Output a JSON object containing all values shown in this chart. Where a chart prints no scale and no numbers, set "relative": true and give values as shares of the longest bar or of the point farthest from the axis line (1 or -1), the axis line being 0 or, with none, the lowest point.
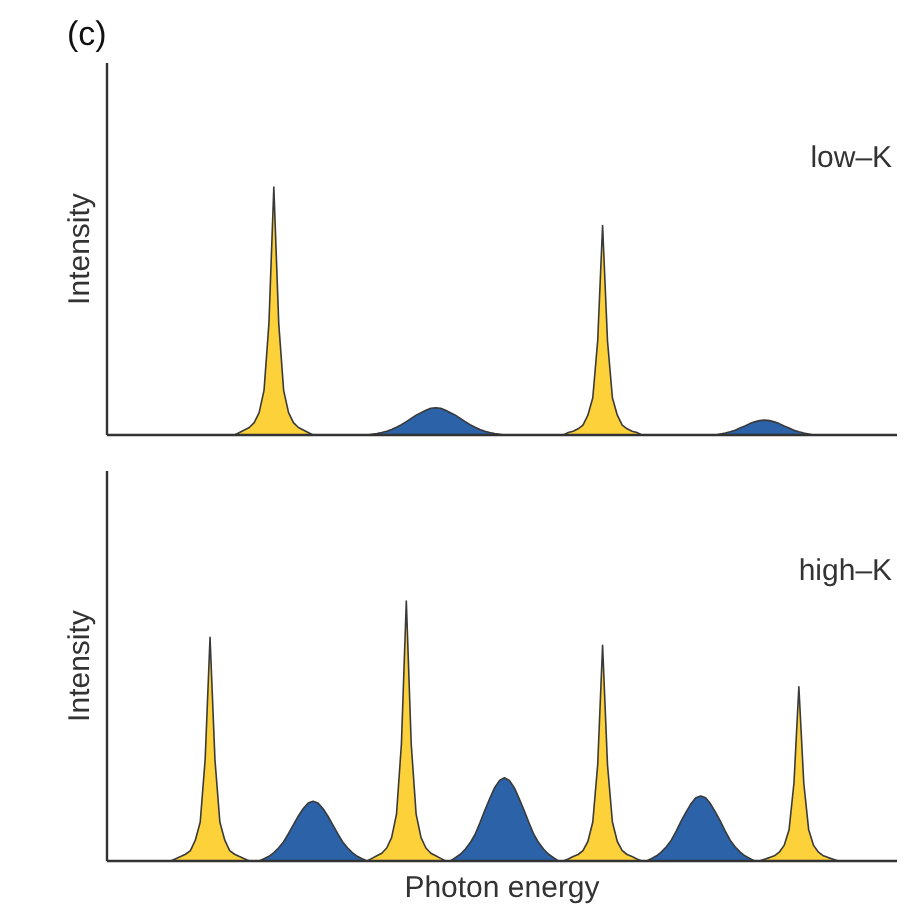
{
  "chart_data": [
    {
      "type": "area",
      "title": "(c)",
      "ylabel": "Intensity",
      "relative": true,
      "annotations": [
        "low–K"
      ],
      "categories": [
        null,
        null,
        null,
        null,
        null,
        null,
        null,
        null,
        null,
        null,
        null,
        null,
        null,
        null,
        null,
        null,
        null,
        null,
        null,
        null,
        null,
        null,
        null,
        null,
        null,
        null,
        null,
        null,
        null,
        null,
        null,
        null,
        null,
        null,
        null,
        null,
        null,
        null,
        null,
        null,
        null,
        null,
        null,
        null,
        null,
        null,
        null,
        null,
        null,
        null,
        null,
        null,
        null,
        null,
        null,
        null,
        null,
        null,
        null,
        null,
        null,
        null,
        null,
        null,
        null,
        null,
        null,
        null,
        null,
        null,
        null,
        null,
        null,
        null,
        null,
        null,
        null,
        null,
        null,
        null,
        null,
        null,
        null,
        null,
        null,
        null,
        null,
        null,
        null,
        null,
        null,
        null,
        null,
        null,
        null,
        null,
        null,
        null,
        null,
        null,
        null,
        null,
        null,
        null,
        null,
        null,
        null,
        null,
        null,
        null,
        null,
        null,
        null,
        null,
        null,
        null,
        null,
        null,
        null,
        null,
        null,
        null,
        null,
        null,
        null,
        null,
        null,
        null,
        null,
        null,
        null,
        null,
        null,
        null,
        null,
        null,
        null,
        null,
        null,
        null,
        null,
        null,
        null,
        null,
        null,
        null,
        null,
        null,
        null,
        null,
        null,
        null,
        null,
        null,
        null,
        null,
        null,
        null,
        null,
        null
      ],
      "series": [
        {
          "color": "#fdd13a",
          "values": [
            0,
            0,
            0,
            0,
            0,
            0,
            0,
            0,
            0,
            0,
            0,
            0,
            0,
            0,
            0,
            0,
            0,
            0,
            0,
            0,
            0,
            0,
            0,
            0,
            0,
            0,
            0.01,
            0.02,
            0.03,
            0.05,
            0.09,
            0.18,
            0.45,
            1,
            0.45,
            0.18,
            0.09,
            0.05,
            0.03,
            0.02,
            0.01,
            0,
            0,
            0,
            0,
            0,
            0,
            0,
            0,
            0,
            0,
            0,
            0,
            0,
            0,
            0,
            0,
            0,
            0,
            0,
            0,
            0,
            0,
            0,
            0,
            0,
            0,
            0,
            0,
            0,
            0,
            0,
            0,
            0,
            0,
            0,
            0,
            0,
            0,
            0,
            0,
            0,
            0,
            0,
            0,
            0,
            0,
            0,
            0,
            0,
            0,
            0,
            0,
            0.01,
            0.015,
            0.025,
            0.04,
            0.08,
            0.15,
            0.38,
            0.845,
            0.38,
            0.15,
            0.08,
            0.04,
            0.025,
            0.015,
            0.01,
            0,
            0,
            0,
            0,
            0,
            0,
            0,
            0,
            0,
            0,
            0,
            0,
            0,
            0,
            0,
            0,
            0,
            0,
            0,
            0,
            0,
            0,
            0,
            0,
            0,
            0,
            0,
            0,
            0,
            0,
            0,
            0,
            0,
            0,
            0,
            0,
            0,
            0,
            0,
            0,
            0,
            0,
            0,
            0,
            0,
            0,
            0,
            0,
            0,
            0,
            0,
            0
          ]
        },
        {
          "color": "#2b62a8",
          "values": [
            0,
            0,
            0,
            0,
            0,
            0,
            0,
            0,
            0,
            0,
            0,
            0,
            0,
            0,
            0,
            0,
            0,
            0,
            0,
            0,
            0,
            0,
            0,
            0,
            0,
            0,
            0,
            0,
            0,
            0,
            0,
            0,
            0,
            0,
            0,
            0,
            0,
            0,
            0,
            0,
            0,
            0,
            0,
            0,
            0,
            0,
            0,
            0,
            0,
            0,
            0,
            0,
            0,
            0.003,
            0.006,
            0.01,
            0.015,
            0.022,
            0.031,
            0.042,
            0.054,
            0.067,
            0.08,
            0.09,
            0.1,
            0.108,
            0.11,
            0.108,
            0.1,
            0.09,
            0.08,
            0.067,
            0.054,
            0.042,
            0.031,
            0.022,
            0.015,
            0.01,
            0.006,
            0.003,
            0,
            0,
            0,
            0,
            0,
            0,
            0,
            0,
            0,
            0,
            0,
            0,
            0,
            0,
            0,
            0,
            0,
            0,
            0,
            0,
            0,
            0,
            0,
            0,
            0,
            0,
            0,
            0,
            0,
            0,
            0,
            0,
            0,
            0,
            0,
            0,
            0,
            0,
            0,
            0,
            0,
            0,
            0,
            0,
            0.004,
            0.008,
            0.013,
            0.019,
            0.028,
            0.036,
            0.046,
            0.053,
            0.058,
            0.06,
            0.058,
            0.053,
            0.046,
            0.036,
            0.028,
            0.019,
            0.013,
            0.008,
            0.004,
            0,
            0,
            0,
            0,
            0,
            0,
            0,
            0,
            0,
            0,
            0,
            0,
            0,
            0,
            0,
            0,
            0
          ]
        }
      ]
    },
    {
      "type": "area",
      "ylabel": "Intensity",
      "xlabel": "Photon energy",
      "relative": true,
      "annotations": [
        "high–K"
      ],
      "categories": [
        null,
        null,
        null,
        null,
        null,
        null,
        null,
        null,
        null,
        null,
        null,
        null,
        null,
        null,
        null,
        null,
        null,
        null,
        null,
        null,
        null,
        null,
        null,
        null,
        null,
        null,
        null,
        null,
        null,
        null,
        null,
        null,
        null,
        null,
        null,
        null,
        null,
        null,
        null,
        null,
        null,
        null,
        null,
        null,
        null,
        null,
        null,
        null,
        null,
        null,
        null,
        null,
        null,
        null,
        null,
        null,
        null,
        null,
        null,
        null,
        null,
        null,
        null,
        null,
        null,
        null,
        null,
        null,
        null,
        null,
        null,
        null,
        null,
        null,
        null,
        null,
        null,
        null,
        null,
        null,
        null,
        null,
        null,
        null,
        null,
        null,
        null,
        null,
        null,
        null,
        null,
        null,
        null,
        null,
        null,
        null,
        null,
        null,
        null,
        null,
        null,
        null,
        null,
        null,
        null,
        null,
        null,
        null,
        null,
        null,
        null,
        null,
        null,
        null,
        null,
        null,
        null,
        null,
        null,
        null,
        null,
        null,
        null,
        null,
        null,
        null,
        null,
        null,
        null,
        null,
        null,
        null,
        null,
        null,
        null,
        null,
        null,
        null,
        null,
        null,
        null,
        null,
        null,
        null,
        null,
        null,
        null,
        null,
        null,
        null,
        null,
        null,
        null,
        null,
        null,
        null,
        null,
        null,
        null,
        null
      ],
      "series": [
        {
          "color": "#fdd13a",
          "values": [
            0,
            0,
            0,
            0,
            0,
            0,
            0,
            0,
            0,
            0,
            0,
            0,
            0,
            0.009,
            0.017,
            0.026,
            0.04,
            0.08,
            0.15,
            0.39,
            0.86,
            0.39,
            0.15,
            0.08,
            0.04,
            0.026,
            0.017,
            0.009,
            0,
            0,
            0,
            0,
            0,
            0,
            0,
            0,
            0,
            0,
            0,
            0,
            0,
            0,
            0,
            0,
            0,
            0,
            0,
            0,
            0,
            0,
            0,
            0,
            0,
            0.01,
            0.02,
            0.03,
            0.05,
            0.09,
            0.18,
            0.45,
            1,
            0.45,
            0.18,
            0.09,
            0.05,
            0.03,
            0.02,
            0.01,
            0,
            0,
            0,
            0,
            0,
            0,
            0,
            0,
            0,
            0,
            0,
            0,
            0,
            0,
            0,
            0,
            0,
            0,
            0,
            0,
            0,
            0,
            0,
            0,
            0,
            0.008,
            0.017,
            0.025,
            0.04,
            0.075,
            0.15,
            0.37,
            0.83,
            0.37,
            0.15,
            0.075,
            0.04,
            0.025,
            0.017,
            0.008,
            0,
            0,
            0,
            0,
            0,
            0,
            0,
            0,
            0,
            0,
            0,
            0,
            0,
            0,
            0,
            0,
            0,
            0,
            0,
            0,
            0,
            0,
            0,
            0,
            0,
            0.007,
            0.013,
            0.02,
            0.034,
            0.06,
            0.12,
            0.3,
            0.67,
            0.3,
            0.12,
            0.06,
            0.034,
            0.02,
            0.013,
            0.007,
            0,
            0,
            0,
            0,
            0,
            0,
            0,
            0,
            0,
            0,
            0,
            0
          ]
        },
        {
          "color": "#2b62a8",
          "values": [
            0,
            0,
            0,
            0,
            0,
            0,
            0,
            0,
            0,
            0,
            0,
            0,
            0,
            0,
            0,
            0,
            0,
            0,
            0,
            0,
            0,
            0,
            0,
            0,
            0,
            0,
            0,
            0,
            0,
            0,
            0,
            0.009,
            0.018,
            0.032,
            0.051,
            0.074,
            0.106,
            0.14,
            0.173,
            0.202,
            0.223,
            0.23,
            0.223,
            0.202,
            0.173,
            0.14,
            0.106,
            0.074,
            0.051,
            0.032,
            0.018,
            0.009,
            0,
            0,
            0,
            0,
            0,
            0,
            0,
            0,
            0,
            0,
            0,
            0,
            0,
            0,
            0,
            0,
            0,
            0,
            0.013,
            0.026,
            0.045,
            0.07,
            0.102,
            0.147,
            0.195,
            0.24,
            0.282,
            0.31,
            0.32,
            0.31,
            0.282,
            0.24,
            0.195,
            0.147,
            0.102,
            0.07,
            0.045,
            0.026,
            0.013,
            0,
            0,
            0,
            0,
            0,
            0,
            0,
            0,
            0,
            0,
            0,
            0,
            0,
            0,
            0,
            0,
            0,
            0,
            0,
            0.01,
            0.02,
            0.035,
            0.055,
            0.08,
            0.115,
            0.153,
            0.188,
            0.22,
            0.243,
            0.25,
            0.243,
            0.22,
            0.188,
            0.153,
            0.115,
            0.08,
            0.055,
            0.035,
            0.02,
            0.01,
            0,
            0,
            0,
            0,
            0,
            0,
            0,
            0,
            0,
            0,
            0,
            0,
            0,
            0,
            0,
            0,
            0,
            0,
            0,
            0,
            0,
            0,
            0,
            0,
            0,
            0,
            0,
            0,
            0
          ]
        }
      ]
    }
  ]
}
